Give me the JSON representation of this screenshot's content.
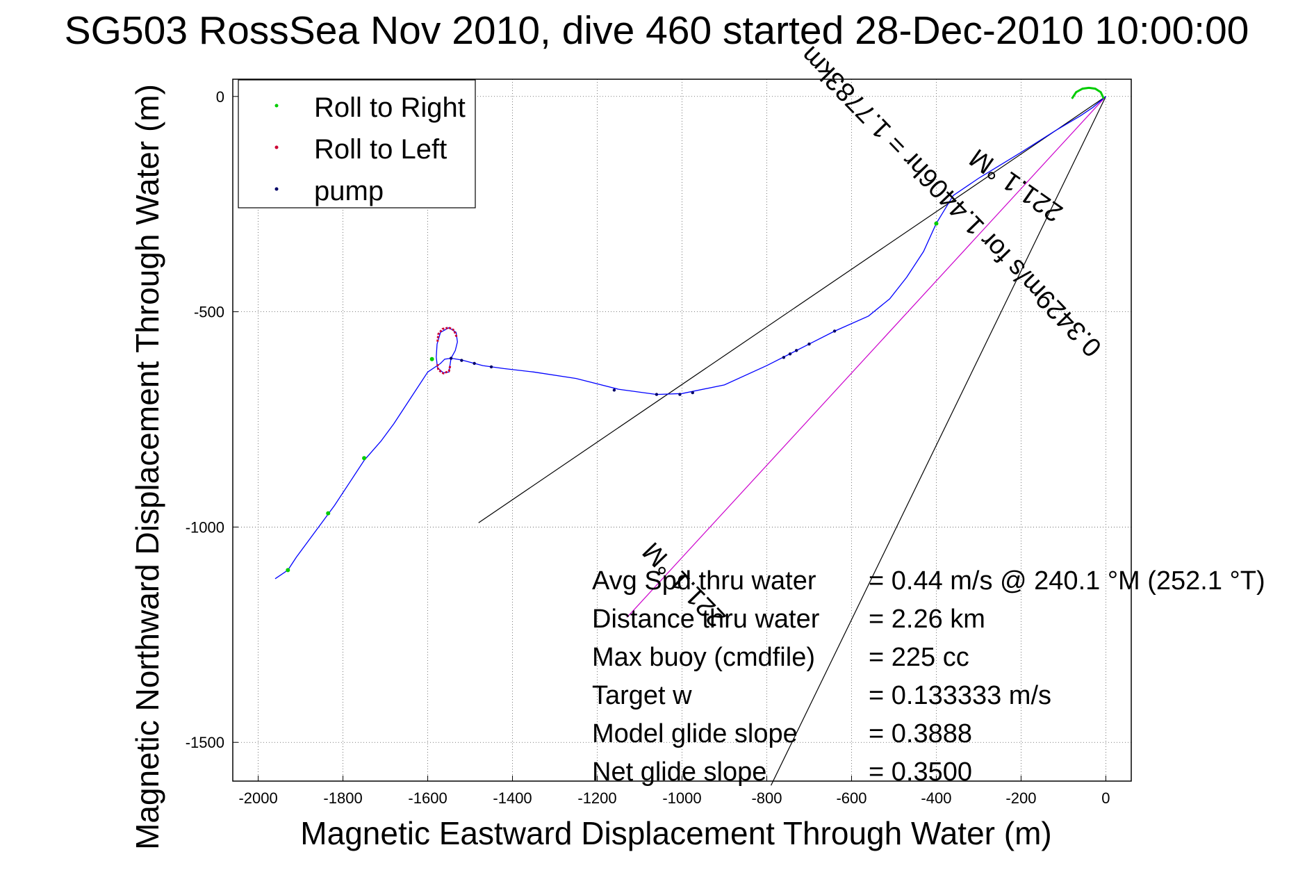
{
  "chart_data": {
    "type": "line",
    "title": "SG503 RossSea Nov 2010, dive 460 started 28-Dec-2010 10:00:00",
    "xlabel": "Magnetic Eastward Displacement Through Water (m)",
    "ylabel": "Magnetic Northward Displacement Through Water (m)",
    "xlim": [
      -2000,
      0
    ],
    "ylim": [
      -1600,
      0
    ],
    "xticks": [
      -2000,
      -1800,
      -1600,
      -1400,
      -1200,
      -1000,
      -800,
      -600,
      -400,
      -200,
      0
    ],
    "yticks": [
      0,
      -500,
      -1000,
      -1500
    ],
    "grid": true,
    "legend_position": "top-left",
    "legend": [
      "Roll to Right",
      "Roll to Left",
      "pump"
    ],
    "colors": {
      "track": "#0000ff",
      "roll_right": "#00cc00",
      "roll_left": "#cc0033",
      "pump": "#000066",
      "heading_line": "#cc00cc",
      "reference_lines": "#000000"
    },
    "track": [
      [
        0,
        0
      ],
      [
        -30,
        -25
      ],
      [
        -60,
        -45
      ],
      [
        -120,
        -80
      ],
      [
        -200,
        -130
      ],
      [
        -300,
        -190
      ],
      [
        -360,
        -230
      ],
      [
        -400,
        -295
      ],
      [
        -430,
        -360
      ],
      [
        -470,
        -420
      ],
      [
        -510,
        -470
      ],
      [
        -560,
        -510
      ],
      [
        -640,
        -545
      ],
      [
        -700,
        -575
      ],
      [
        -740,
        -595
      ],
      [
        -800,
        -625
      ],
      [
        -900,
        -670
      ],
      [
        -1000,
        -690
      ],
      [
        -1060,
        -692
      ],
      [
        -1150,
        -680
      ],
      [
        -1250,
        -655
      ],
      [
        -1350,
        -640
      ],
      [
        -1420,
        -632
      ],
      [
        -1470,
        -625
      ],
      [
        -1520,
        -612
      ],
      [
        -1545,
        -608
      ],
      [
        -1560,
        -610
      ],
      [
        -1570,
        -620
      ],
      [
        -1600,
        -640
      ],
      [
        -1640,
        -700
      ],
      [
        -1680,
        -760
      ],
      [
        -1710,
        -800
      ],
      [
        -1750,
        -845
      ],
      [
        -1780,
        -890
      ],
      [
        -1820,
        -950
      ],
      [
        -1850,
        -990
      ],
      [
        -1880,
        -1030
      ],
      [
        -1910,
        -1070
      ],
      [
        -1930,
        -1100
      ],
      [
        -1960,
        -1120
      ]
    ],
    "loop": [
      [
        -1545,
        -608
      ],
      [
        -1535,
        -590
      ],
      [
        -1530,
        -570
      ],
      [
        -1533,
        -548
      ],
      [
        -1550,
        -537
      ],
      [
        -1570,
        -548
      ],
      [
        -1578,
        -575
      ],
      [
        -1580,
        -605
      ],
      [
        -1577,
        -630
      ],
      [
        -1563,
        -642
      ],
      [
        -1550,
        -640
      ],
      [
        -1545,
        -608
      ]
    ],
    "roll_right_arc": [
      [
        -80,
        -5
      ],
      [
        -70,
        10
      ],
      [
        -55,
        18
      ],
      [
        -40,
        20
      ],
      [
        -25,
        18
      ],
      [
        -12,
        10
      ],
      [
        -5,
        -5
      ]
    ],
    "roll_right_points": [
      [
        -400,
        -295
      ],
      [
        -1590,
        -610
      ],
      [
        -1750,
        -840
      ],
      [
        -1835,
        -968
      ],
      [
        -1930,
        -1100
      ]
    ],
    "roll_left_arc": [
      [
        -1532,
        -558
      ],
      [
        -1538,
        -543
      ],
      [
        -1550,
        -537
      ],
      [
        -1565,
        -540
      ],
      [
        -1575,
        -552
      ],
      [
        -1577,
        -570
      ]
    ],
    "roll_left_arc2": [
      [
        -1577,
        -622
      ],
      [
        -1575,
        -635
      ],
      [
        -1563,
        -643
      ],
      [
        -1550,
        -638
      ],
      [
        -1547,
        -625
      ]
    ],
    "pump_points": [
      [
        -640,
        -545
      ],
      [
        -700,
        -575
      ],
      [
        -730,
        -590
      ],
      [
        -745,
        -598
      ],
      [
        -760,
        -606
      ],
      [
        -975,
        -688
      ],
      [
        -1005,
        -692
      ],
      [
        -1060,
        -692
      ],
      [
        -1160,
        -682
      ],
      [
        -1450,
        -628
      ],
      [
        -1490,
        -620
      ],
      [
        -1520,
        -613
      ],
      [
        -1545,
        -608
      ]
    ],
    "heading_line": [
      [
        0,
        0
      ],
      [
        -1130,
        -1210
      ]
    ],
    "reference_lines": [
      [
        [
          0,
          0
        ],
        [
          -1480,
          -990
        ]
      ],
      [
        [
          0,
          0
        ],
        [
          -790,
          -1600
        ]
      ]
    ],
    "annotations": [
      {
        "text": "221.1 °M",
        "x": -200,
        "y": -190,
        "angle": 215
      },
      {
        "text": "0.3429m/s for 1.4406hr = 1.7783km",
        "x": -350,
        "y": -230,
        "angle": 226
      },
      {
        "text": "221.1 °M",
        "x": -980,
        "y": -1120,
        "angle": 226
      }
    ],
    "stats": [
      {
        "label": "Avg Spd thru water",
        "value": "=  0.44 m/s @ 240.1 °M (252.1 °T)"
      },
      {
        "label": "Distance thru water",
        "value": "=  2.26 km"
      },
      {
        "label": "Max buoy (cmdfile)",
        "value": "= 225 cc"
      },
      {
        "label": "Target w",
        "value": "= 0.133333 m/s"
      },
      {
        "label": "Model glide slope",
        "value": "= 0.3888"
      },
      {
        "label": "Net glide slope",
        "value": "= 0.3500"
      }
    ]
  }
}
